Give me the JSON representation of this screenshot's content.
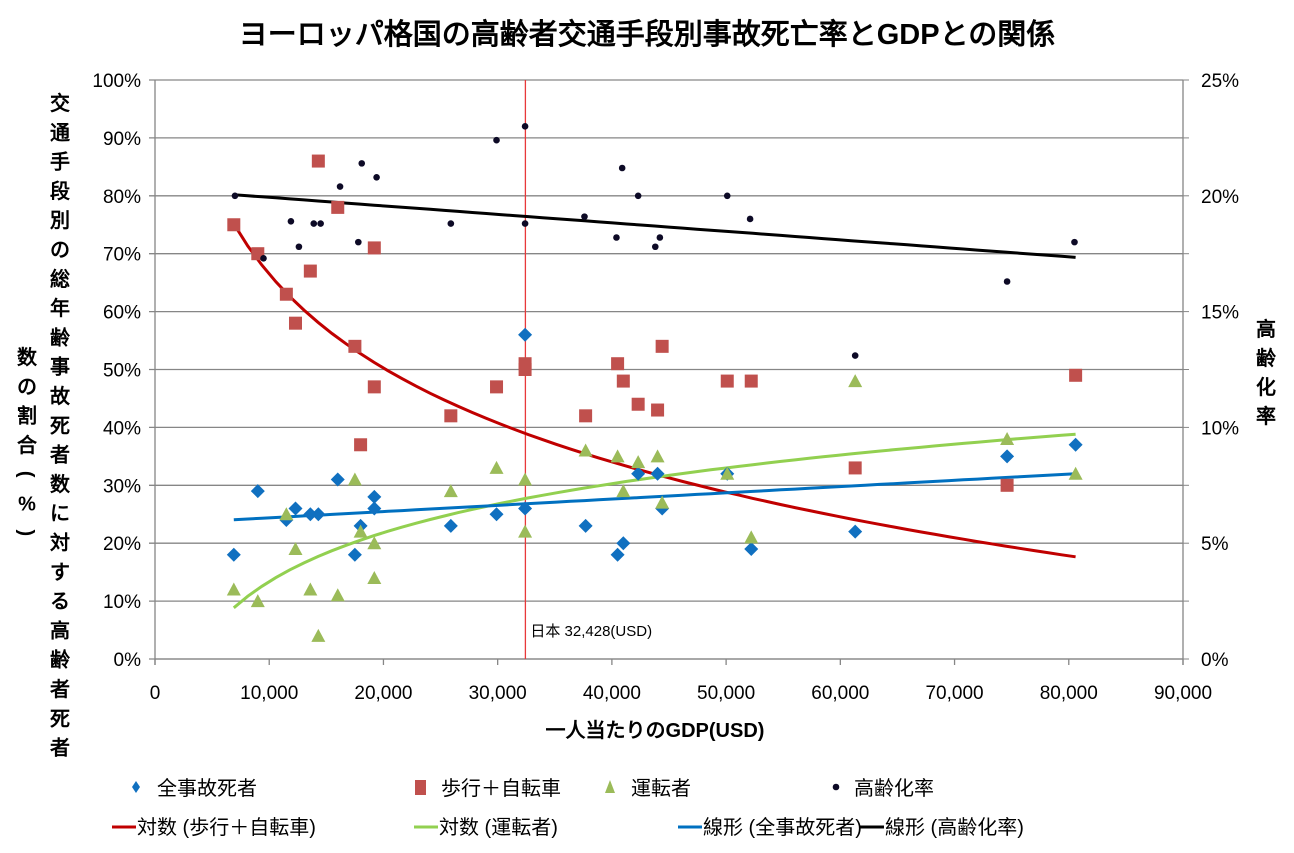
{
  "chart_data": {
    "type": "scatter",
    "title": "ヨーロッパ格国の高齢者交通手段別事故死亡率とGDPとの関係",
    "xlabel": "一人当たりのGDP(USD)",
    "ylabel_left_col1": "交通手段別の総年齢事故死者数に対する高齢者死者",
    "ylabel_left_col2": "数の割合(%)",
    "ylabel_right": "高齢化率",
    "xlim": [
      0,
      90000
    ],
    "ylim_left": [
      0,
      100
    ],
    "ylim_right": [
      0,
      25
    ],
    "grid": true,
    "x_ticks": [
      "0",
      "10,000",
      "20,000",
      "30,000",
      "40,000",
      "50,000",
      "60,000",
      "70,000",
      "80,000",
      "90,000"
    ],
    "x_tick_values": [
      0,
      10000,
      20000,
      30000,
      40000,
      50000,
      60000,
      70000,
      80000,
      90000
    ],
    "y_left_ticks": [
      "0%",
      "10%",
      "20%",
      "30%",
      "40%",
      "50%",
      "60%",
      "70%",
      "80%",
      "90%",
      "100%"
    ],
    "y_left_tick_values": [
      0,
      10,
      20,
      30,
      40,
      50,
      60,
      70,
      80,
      90,
      100
    ],
    "y_right_ticks": [
      "0%",
      "5%",
      "10%",
      "15%",
      "20%",
      "25%"
    ],
    "y_right_tick_values": [
      0,
      5,
      10,
      15,
      20,
      25
    ],
    "reference_line": {
      "x": 32428,
      "label": "日本 32,428(USD)",
      "color": "#e8393a"
    },
    "legend_position": "bottom",
    "series": [
      {
        "name": "全事故死者",
        "marker": "diamond",
        "color": "#1070c0",
        "axis": "left",
        "points": [
          [
            6900,
            18
          ],
          [
            9000,
            29
          ],
          [
            11500,
            24
          ],
          [
            12300,
            26
          ],
          [
            13600,
            25
          ],
          [
            14300,
            25
          ],
          [
            16000,
            31
          ],
          [
            17500,
            18
          ],
          [
            18000,
            23
          ],
          [
            19200,
            28
          ],
          [
            19200,
            26
          ],
          [
            25900,
            23
          ],
          [
            29900,
            25
          ],
          [
            32400,
            56
          ],
          [
            32400,
            26
          ],
          [
            37700,
            23
          ],
          [
            40500,
            18
          ],
          [
            41000,
            20
          ],
          [
            42300,
            32
          ],
          [
            44000,
            32
          ],
          [
            44400,
            26
          ],
          [
            50100,
            32
          ],
          [
            52200,
            19
          ],
          [
            61300,
            22
          ],
          [
            74600,
            35
          ],
          [
            80600,
            37
          ]
        ]
      },
      {
        "name": "歩行＋自転車",
        "marker": "square",
        "color": "#c0504d",
        "axis": "left",
        "points": [
          [
            6900,
            75
          ],
          [
            9000,
            70
          ],
          [
            11500,
            63
          ],
          [
            12300,
            58
          ],
          [
            13600,
            67
          ],
          [
            14300,
            86
          ],
          [
            16000,
            78
          ],
          [
            17500,
            54
          ],
          [
            18000,
            37
          ],
          [
            19200,
            71
          ],
          [
            19200,
            47
          ],
          [
            25900,
            42
          ],
          [
            29900,
            47
          ],
          [
            32400,
            51
          ],
          [
            32400,
            50
          ],
          [
            37700,
            42
          ],
          [
            40500,
            51
          ],
          [
            41000,
            48
          ],
          [
            42300,
            44
          ],
          [
            44000,
            43
          ],
          [
            44400,
            54
          ],
          [
            50100,
            48
          ],
          [
            52200,
            48
          ],
          [
            61300,
            33
          ],
          [
            74600,
            30
          ],
          [
            80600,
            49
          ]
        ]
      },
      {
        "name": "運転者",
        "marker": "triangle",
        "color": "#9bbb59",
        "axis": "left",
        "points": [
          [
            6900,
            12
          ],
          [
            9000,
            10
          ],
          [
            11500,
            25
          ],
          [
            12300,
            19
          ],
          [
            13600,
            12
          ],
          [
            14300,
            4
          ],
          [
            16000,
            11
          ],
          [
            17500,
            31
          ],
          [
            18000,
            22
          ],
          [
            19200,
            20
          ],
          [
            19200,
            14
          ],
          [
            25900,
            29
          ],
          [
            29900,
            33
          ],
          [
            32400,
            31
          ],
          [
            32400,
            22
          ],
          [
            37700,
            36
          ],
          [
            40500,
            35
          ],
          [
            41000,
            29
          ],
          [
            42300,
            34
          ],
          [
            44000,
            35
          ],
          [
            44400,
            27
          ],
          [
            50100,
            32
          ],
          [
            52200,
            21
          ],
          [
            61300,
            48
          ],
          [
            74600,
            38
          ],
          [
            80600,
            32
          ]
        ]
      },
      {
        "name": "高齢化率",
        "marker": "circle",
        "color": "#0d0a26",
        "axis": "right",
        "points": [
          [
            7000,
            20.0
          ],
          [
            9500,
            17.3
          ],
          [
            11900,
            18.9
          ],
          [
            12600,
            17.8
          ],
          [
            13900,
            18.8
          ],
          [
            14500,
            18.8
          ],
          [
            16200,
            20.4
          ],
          [
            17800,
            18.0
          ],
          [
            18100,
            21.4
          ],
          [
            19400,
            20.8
          ],
          [
            25900,
            18.8
          ],
          [
            29900,
            22.4
          ],
          [
            32400,
            23.0
          ],
          [
            32400,
            18.8
          ],
          [
            37600,
            19.1
          ],
          [
            40400,
            18.2
          ],
          [
            40900,
            21.2
          ],
          [
            42300,
            20.0
          ],
          [
            43800,
            17.8
          ],
          [
            44200,
            18.2
          ],
          [
            50100,
            20.0
          ],
          [
            52100,
            19.0
          ],
          [
            61300,
            13.1
          ],
          [
            74600,
            16.3
          ],
          [
            80500,
            18.0
          ]
        ]
      }
    ],
    "trendlines": [
      {
        "name": "対数 (歩行＋自転車)",
        "type": "log",
        "color": "#c00000",
        "axis": "left",
        "a": -23.4,
        "b": 282.0,
        "x_range": [
          6900,
          80600
        ]
      },
      {
        "name": "対数 (運転者)",
        "type": "log",
        "color": "#92d050",
        "axis": "left",
        "a": 12.2,
        "b": -99.0,
        "x_range": [
          6900,
          80600
        ]
      },
      {
        "name": "線形 (全事故死者)",
        "type": "linear",
        "color": "#0070c0",
        "axis": "left",
        "slope": 0.000108,
        "intercept": 23.3,
        "x_range": [
          6900,
          80600
        ]
      },
      {
        "name": "線形 (高齢化率)",
        "type": "linear",
        "color": "#000000",
        "axis": "right",
        "slope": -3.67e-05,
        "intercept": 20.3,
        "x_range": [
          6900,
          80600
        ]
      }
    ]
  },
  "legend": {
    "row1": [
      "全事故死者",
      "歩行＋自転車",
      "運転者",
      "高齢化率"
    ],
    "row2": [
      "対数 (歩行＋自転車)",
      "対数 (運転者)",
      "線形 (全事故死者)",
      "線形 (高齢化率)"
    ]
  }
}
